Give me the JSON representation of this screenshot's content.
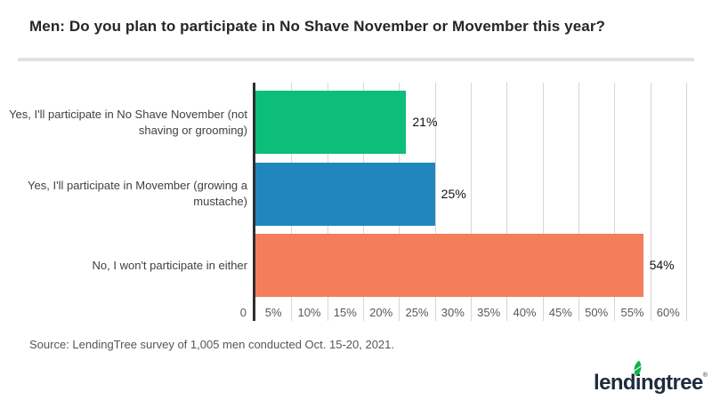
{
  "title": "Men: Do you plan to participate in No Shave November or Movember this year?",
  "source": "Source: LendingTree survey of 1,005 men conducted Oct. 15-20, 2021.",
  "logo": {
    "text": "lendingtree",
    "reg_mark": "®",
    "leaf_color": "#10b24c",
    "text_color": "#1e2c3c"
  },
  "colors": {
    "divider": "#e1e1e1",
    "axis": "#2e2e2e",
    "gridline": "#d7d7d7",
    "title_text": "#262626",
    "category_text": "#414141",
    "tick_text": "#595959",
    "value_text": "#111111",
    "source_text": "#565656"
  },
  "chart_data": {
    "type": "bar",
    "orientation": "horizontal",
    "title": "Men: Do you plan to participate in No Shave November or Movember this year?",
    "categories": [
      "Yes, I'll participate in No Shave November (not shaving or grooming)",
      "Yes, I'll participate in Movember (growing a mustache)",
      "No, I won't participate in either"
    ],
    "values": [
      21,
      25,
      54
    ],
    "value_labels": [
      "21%",
      "25%",
      "54%"
    ],
    "bar_colors": [
      "#0cbe77",
      "#2286be",
      "#f47e5c"
    ],
    "xlabel": "",
    "ylabel": "",
    "xlim": [
      0,
      60
    ],
    "x_tick_step": 5,
    "x_tick_labels": [
      "0",
      "5%",
      "10%",
      "15%",
      "20%",
      "25%",
      "30%",
      "35%",
      "40%",
      "45%",
      "50%",
      "55%",
      "60%"
    ],
    "grid": true,
    "legend": false
  }
}
